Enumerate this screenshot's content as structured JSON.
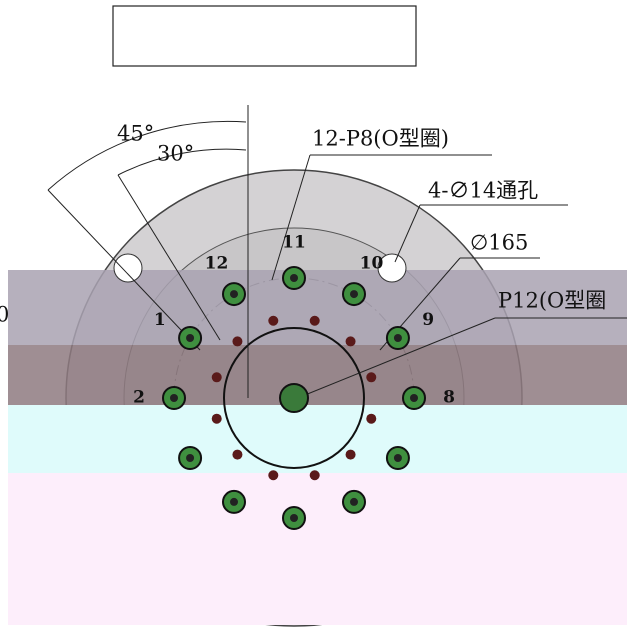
{
  "annotations": {
    "angle_45": "45°",
    "angle_30": "30°",
    "o_ring_p8": "12-P8(O型圈)",
    "through_hole": "4-∅14通孔",
    "diameter": "∅165",
    "o_ring_p12": "P12(O型圈",
    "edge_fragment": "0"
  },
  "hole_labels": [
    "1",
    "2",
    "8",
    "9",
    "10",
    "11",
    "12"
  ]
}
